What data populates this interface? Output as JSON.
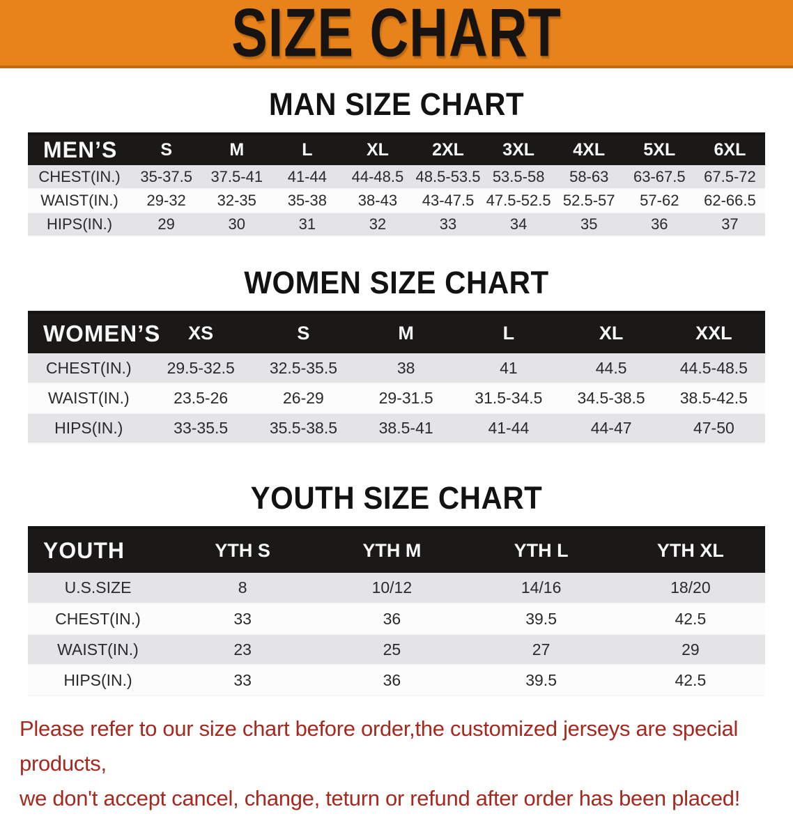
{
  "banner": {
    "title": "SIZE CHART",
    "bg_color": "#E8821B",
    "text_color": "#171310"
  },
  "colors": {
    "table_header_bg": "#1B1918",
    "row_alt_gray": "#E4E4E6",
    "disclaimer_red": "#A5291F"
  },
  "sections": [
    {
      "heading": "MAN SIZE CHART",
      "table": {
        "label": "MEN’S",
        "columns": [
          "S",
          "M",
          "L",
          "XL",
          "2XL",
          "3XL",
          "4XL",
          "5XL",
          "6XL"
        ],
        "rows": [
          {
            "label": "CHEST(IN.)",
            "values": [
              "35-37.5",
              "37.5-41",
              "41-44",
              "44-48.5",
              "48.5-53.5",
              "53.5-58",
              "58-63",
              "63-67.5",
              "67.5-72"
            ]
          },
          {
            "label": "WAIST(IN.)",
            "values": [
              "29-32",
              "32-35",
              "35-38",
              "38-43",
              "43-47.5",
              "47.5-52.5",
              "52.5-57",
              "57-62",
              "62-66.5"
            ]
          },
          {
            "label": "HIPS(IN.)",
            "values": [
              "29",
              "30",
              "31",
              "32",
              "33",
              "34",
              "35",
              "36",
              "37"
            ]
          }
        ]
      }
    },
    {
      "heading": "WOMEN SIZE CHART",
      "table": {
        "label": "WOMEN’S",
        "columns": [
          "XS",
          "S",
          "M",
          "L",
          "XL",
          "XXL"
        ],
        "rows": [
          {
            "label": "CHEST(IN.)",
            "values": [
              "29.5-32.5",
              "32.5-35.5",
              "38",
              "41",
              "44.5",
              "44.5-48.5"
            ]
          },
          {
            "label": "WAIST(IN.)",
            "values": [
              "23.5-26",
              "26-29",
              "29-31.5",
              "31.5-34.5",
              "34.5-38.5",
              "38.5-42.5"
            ]
          },
          {
            "label": "HIPS(IN.)",
            "values": [
              "33-35.5",
              "35.5-38.5",
              "38.5-41",
              "41-44",
              "44-47",
              "47-50"
            ]
          }
        ]
      }
    },
    {
      "heading": "YOUTH SIZE CHART",
      "table": {
        "label": "YOUTH",
        "columns": [
          "YTH S",
          "YTH M",
          "YTH L",
          "YTH XL"
        ],
        "rows": [
          {
            "label": "U.S.SIZE",
            "values": [
              "8",
              "10/12",
              "14/16",
              "18/20"
            ]
          },
          {
            "label": "CHEST(IN.)",
            "values": [
              "33",
              "36",
              "39.5",
              "42.5"
            ]
          },
          {
            "label": "WAIST(IN.)",
            "values": [
              "23",
              "25",
              "27",
              "29"
            ]
          },
          {
            "label": "HIPS(IN.)",
            "values": [
              "33",
              "36",
              "39.5",
              "42.5"
            ]
          }
        ]
      }
    }
  ],
  "disclaimer": {
    "line1": "Please refer to our size chart before order,the customized jerseys are special products,",
    "line2": "we don't accept cancel, change, teturn or refund after order has been placed!"
  }
}
